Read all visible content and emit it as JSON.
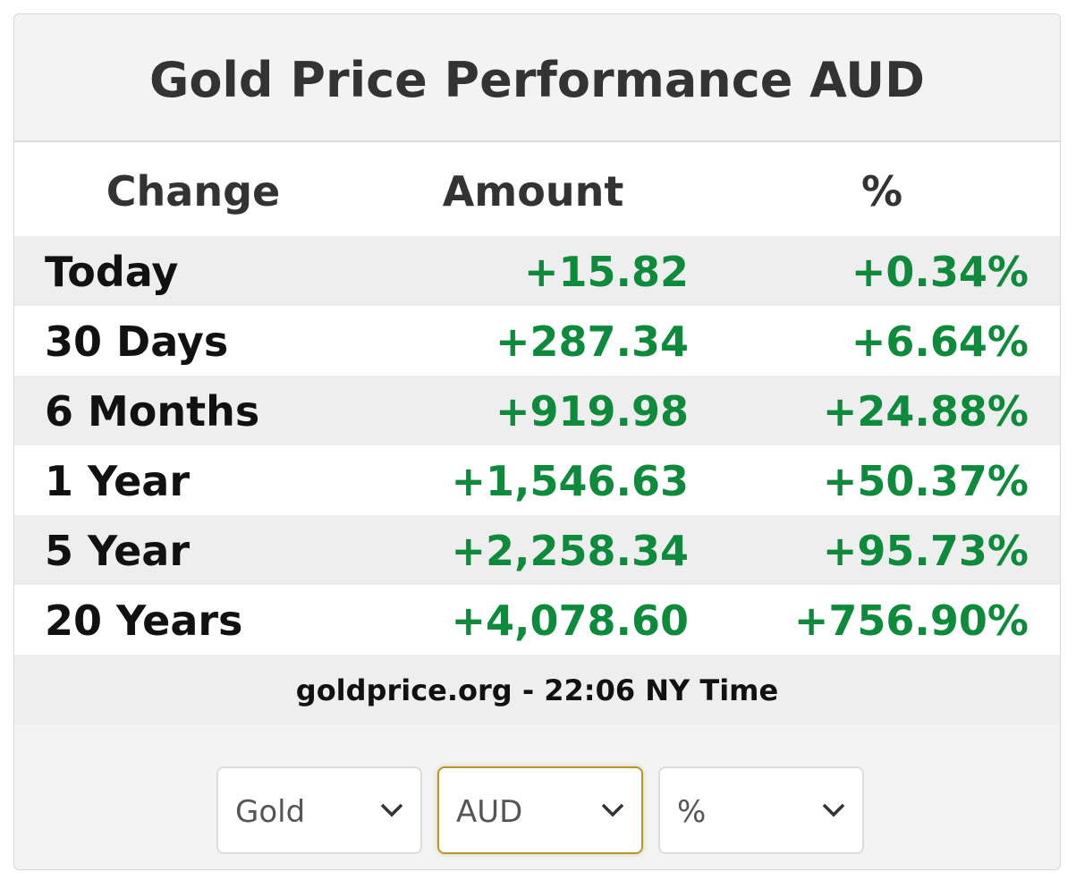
{
  "header": {
    "title": "Gold Price Performance AUD"
  },
  "table": {
    "columns": [
      "Change",
      "Amount",
      "%"
    ],
    "rows": [
      [
        "Today",
        "+15.82",
        "+0.34%"
      ],
      [
        "30 Days",
        "+287.34",
        "+6.64%"
      ],
      [
        "6 Months",
        "+919.98",
        "+24.88%"
      ],
      [
        "1 Year",
        "+1,546.63",
        "+50.37%"
      ],
      [
        "5 Year",
        "+2,258.34",
        "+95.73%"
      ],
      [
        "20 Years",
        "+4,078.60",
        "+756.90%"
      ]
    ]
  },
  "footer": "goldprice.org - 22:06 NY Time",
  "selects": [
    "Gold",
    "AUD",
    "%"
  ]
}
